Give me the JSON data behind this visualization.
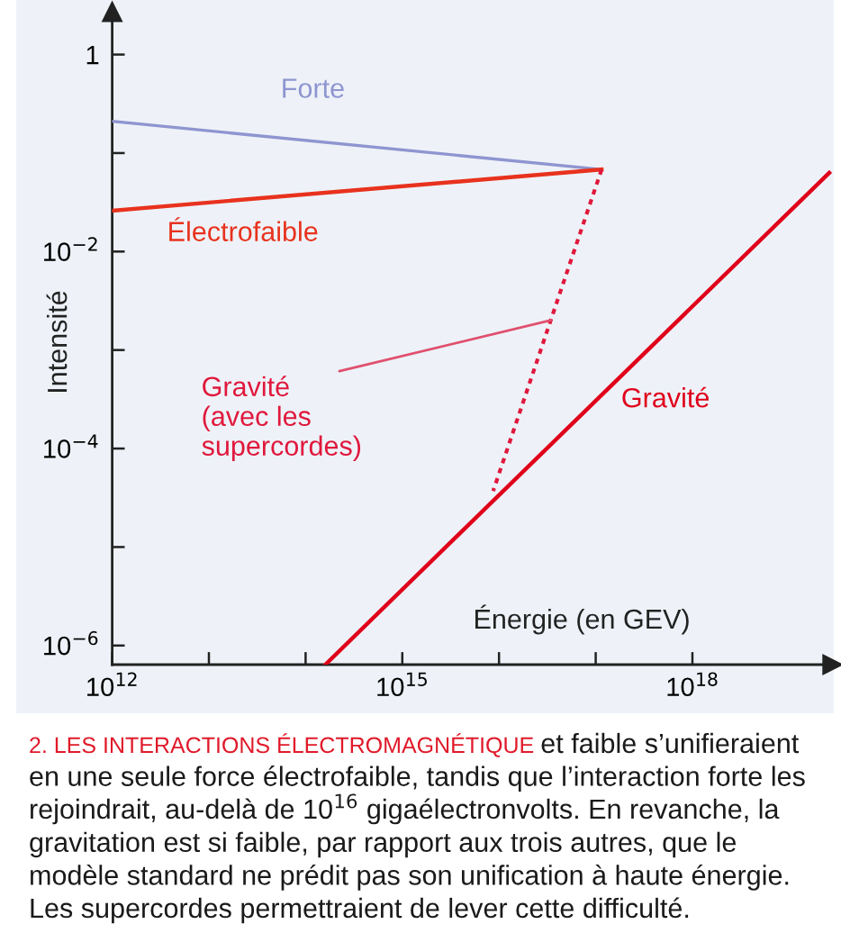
{
  "chart_data": {
    "type": "line",
    "xlabel": "Énergie (en GEV)",
    "ylabel": "Intensité",
    "log": "xy",
    "xlim": [
      1000000000000.0,
      2.8e+19
    ],
    "ylim": [
      6.4e-07,
      2.7
    ],
    "xticks": [
      {
        "value": 1000000000000.0,
        "label": "10$^{12}$"
      },
      {
        "value": 10000000000000.0,
        "label": null
      },
      {
        "value": 100000000000000.0,
        "label": null
      },
      {
        "value": 1000000000000000.0,
        "label": "10$^{15}$"
      },
      {
        "value": 1e+16,
        "label": null
      },
      {
        "value": 1e+17,
        "label": null
      },
      {
        "value": 1e+18,
        "label": "10$^{18}$"
      }
    ],
    "yticks": [
      {
        "value": 1e-06,
        "label": "10$^{−6}$"
      },
      {
        "value": 1e-05,
        "label": null
      },
      {
        "value": 0.0001,
        "label": "10$^{−4}$"
      },
      {
        "value": 0.001,
        "label": null
      },
      {
        "value": 0.01,
        "label": "10$^{−2}$"
      },
      {
        "value": 0.1,
        "label": null
      },
      1
    ],
    "series": [
      {
        "name": "Forte",
        "color": "#8e95d0",
        "x": [
          1000000000000.0,
          1.15e+17
        ],
        "values": [
          0.21,
          0.068
        ]
      },
      {
        "name": "Électrofaible",
        "color": "#e8321e",
        "x": [
          1000000000000.0,
          1.15e+17
        ],
        "values": [
          0.026,
          0.068
        ]
      },
      {
        "name": "Gravité\n(avec les\nsupercordes)",
        "color": "#e0183c",
        "line_style": "dotted",
        "x": [
          1.15e+17,
          8700000000000000.0
        ],
        "values": [
          0.068,
          3.7e-05
        ]
      },
      {
        "name": "Gravité",
        "color": "#e0001a",
        "x": [
          160000000000000.0,
          2.6e+19
        ],
        "values": [
          6.4e-07,
          0.063
        ]
      }
    ],
    "annotations": [
      "2. LES INTERACTIONS ÉLECTROMAGNÉTIQUE",
      "et faible s’unifieraient",
      "en une seule force électrofaible, tandis que l’interaction forte les\nrejoindrait, au-delà de 10$^{16}$ gigaélectronvolts. En revanche, la\ngravitation est si faible, par rapport aux trois autres, que le\nmodèle standard ne prédit pas son unification à haute énergie.\nLes supercordes permettraient de lever cette difficulté."
    ]
  }
}
